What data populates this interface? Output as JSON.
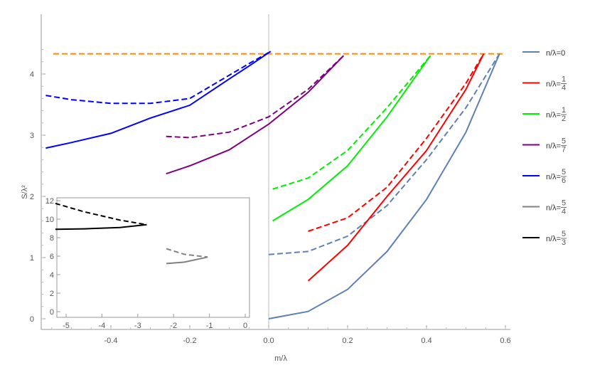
{
  "chart_data": [
    {
      "type": "line",
      "xlabel": "m/λ",
      "ylabel": "S/λ²",
      "xlim": [
        -0.58,
        0.62
      ],
      "ylim": [
        -0.15,
        4.5
      ],
      "xticks": [
        -0.4,
        -0.2,
        0,
        0.2,
        0.4,
        0.6
      ],
      "xtick_labels": [
        "-0.4",
        "-0.2",
        "0.0",
        "0.2",
        "0.4",
        "0.6"
      ],
      "yticks": [
        0,
        1,
        2,
        3,
        4
      ],
      "ytick_labels": [
        "0",
        "1",
        "2",
        "3",
        "4"
      ],
      "grid": false,
      "legend_placement": "right",
      "reference_line": {
        "y": 4.33,
        "x": [
          -0.546,
          0.6
        ],
        "color": "#ff8c00",
        "style": "dashed"
      },
      "series": [
        {
          "name": "n/λ=0",
          "color": "#5e81b5",
          "solid": [
            [
              0,
              0
            ],
            [
              0.1,
              0.12
            ],
            [
              0.2,
              0.48
            ],
            [
              0.3,
              1.1
            ],
            [
              0.4,
              1.95
            ],
            [
              0.5,
              3.05
            ],
            [
              0.585,
              4.33
            ]
          ],
          "dashed": [
            [
              0,
              1.05
            ],
            [
              0.1,
              1.1
            ],
            [
              0.2,
              1.35
            ],
            [
              0.3,
              1.85
            ],
            [
              0.4,
              2.6
            ],
            [
              0.5,
              3.45
            ],
            [
              0.585,
              4.33
            ]
          ]
        },
        {
          "name": "n/λ=1/4",
          "color": "#ff0000",
          "solid": [
            [
              0.1,
              0.62
            ],
            [
              0.2,
              1.2
            ],
            [
              0.3,
              2.0
            ],
            [
              0.4,
              2.75
            ],
            [
              0.5,
              3.75
            ],
            [
              0.545,
              4.33
            ]
          ],
          "dashed": [
            [
              0.1,
              1.43
            ],
            [
              0.2,
              1.65
            ],
            [
              0.3,
              2.15
            ],
            [
              0.4,
              2.95
            ],
            [
              0.5,
              3.85
            ],
            [
              0.545,
              4.33
            ]
          ]
        },
        {
          "name": "n/λ=1/2",
          "color": "#00ee00",
          "solid": [
            [
              0.01,
              1.6
            ],
            [
              0.1,
              1.95
            ],
            [
              0.2,
              2.5
            ],
            [
              0.3,
              3.3
            ],
            [
              0.41,
              4.3
            ]
          ],
          "dashed": [
            [
              0.01,
              2.12
            ],
            [
              0.1,
              2.3
            ],
            [
              0.2,
              2.75
            ],
            [
              0.3,
              3.45
            ],
            [
              0.41,
              4.3
            ]
          ]
        },
        {
          "name": "n/λ=5/7",
          "color": "#800080",
          "solid": [
            [
              -0.26,
              2.37
            ],
            [
              -0.2,
              2.5
            ],
            [
              -0.1,
              2.76
            ],
            [
              0,
              3.18
            ],
            [
              0.1,
              3.7
            ],
            [
              0.19,
              4.3
            ]
          ],
          "dashed": [
            [
              -0.26,
              2.98
            ],
            [
              -0.2,
              2.96
            ],
            [
              -0.1,
              3.05
            ],
            [
              0,
              3.3
            ],
            [
              0.1,
              3.75
            ],
            [
              0.19,
              4.3
            ]
          ]
        },
        {
          "name": "n/λ=5/6",
          "color": "#0000ff",
          "solid": [
            [
              -0.565,
              2.79
            ],
            [
              -0.5,
              2.88
            ],
            [
              -0.4,
              3.03
            ],
            [
              -0.3,
              3.28
            ],
            [
              -0.2,
              3.49
            ],
            [
              -0.1,
              3.92
            ],
            [
              -0.05,
              4.13
            ],
            [
              0.005,
              4.37
            ]
          ],
          "dashed": [
            [
              -0.565,
              3.65
            ],
            [
              -0.5,
              3.58
            ],
            [
              -0.4,
              3.52
            ],
            [
              -0.3,
              3.52
            ],
            [
              -0.2,
              3.6
            ],
            [
              -0.1,
              3.98
            ],
            [
              -0.05,
              4.17
            ],
            [
              0.005,
              4.37
            ]
          ]
        },
        {
          "name": "n/λ=5/4",
          "color": "#808080"
        },
        {
          "name": "n/λ=5/3",
          "color": "#000000"
        }
      ],
      "legend": [
        {
          "pre": "n/λ=",
          "text": "0"
        },
        {
          "pre": "n/λ=",
          "num": "1",
          "den": "4"
        },
        {
          "pre": "n/λ=",
          "num": "1",
          "den": "2"
        },
        {
          "pre": "n/λ=",
          "num": "5",
          "den": "7"
        },
        {
          "pre": "n/λ=",
          "num": "5",
          "den": "6"
        },
        {
          "pre": "n/λ=",
          "num": "5",
          "den": "4"
        },
        {
          "pre": "n/λ=",
          "num": "5",
          "den": "3"
        }
      ]
    },
    {
      "type": "line",
      "placement": "inset",
      "xlim": [
        -5.3,
        0.1
      ],
      "ylim": [
        -0.6,
        12.4
      ],
      "xticks": [
        -5,
        -4,
        -3,
        -2,
        -1,
        0
      ],
      "xtick_labels": [
        "-5",
        "-4",
        "-3",
        "-2",
        "-1",
        "0"
      ],
      "yticks": [
        0,
        2,
        4,
        6,
        8,
        10,
        12
      ],
      "ytick_labels": [
        "0",
        "2",
        "4",
        "6",
        "8",
        "10",
        "12"
      ],
      "series": [
        {
          "name": "n/λ=5/3",
          "color": "#000000",
          "solid": [
            [
              -5.3,
              8.9
            ],
            [
              -4.5,
              8.95
            ],
            [
              -3.5,
              9.1
            ],
            [
              -2.75,
              9.4
            ]
          ],
          "dashed": [
            [
              -5.3,
              11.7
            ],
            [
              -4.5,
              10.8
            ],
            [
              -3.5,
              9.9
            ],
            [
              -2.75,
              9.4
            ]
          ]
        },
        {
          "name": "n/λ=5/4",
          "color": "#808080",
          "solid": [
            [
              -2.2,
              5.2
            ],
            [
              -1.7,
              5.35
            ],
            [
              -1.05,
              5.9
            ]
          ],
          "dashed": [
            [
              -2.2,
              6.8
            ],
            [
              -1.7,
              6.2
            ],
            [
              -1.05,
              5.9
            ]
          ]
        }
      ]
    }
  ]
}
